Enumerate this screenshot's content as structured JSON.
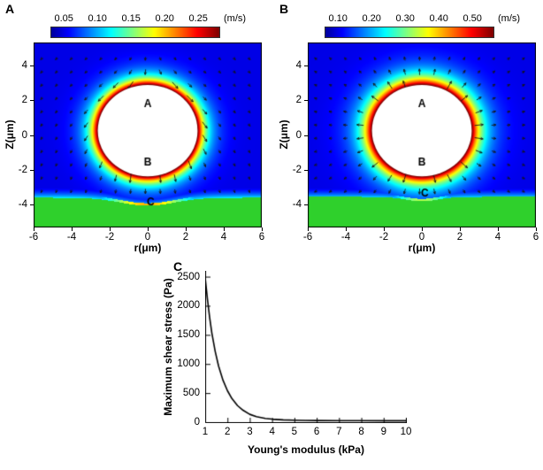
{
  "chart_data": [
    {
      "id": "A",
      "type": "heatmap",
      "panel_label": "A",
      "xlabel": "r(μm)",
      "ylabel": "Z(μm)",
      "x_range": [
        -6,
        6
      ],
      "y_range": [
        -5.3,
        5.3
      ],
      "x_ticks": [
        "-6",
        "-4",
        "-2",
        "0",
        "2",
        "4",
        "6"
      ],
      "x_tick_values": [
        -6,
        -4,
        -2,
        0,
        2,
        4,
        6
      ],
      "y_ticks": [
        "4",
        "2",
        "0",
        "-2",
        "-4"
      ],
      "y_tick_values": [
        4,
        2,
        0,
        -2,
        -4
      ],
      "colorbar": {
        "ticks": [
          "0.05",
          "0.10",
          "0.15",
          "0.20",
          "0.25"
        ],
        "tick_values": [
          0.05,
          0.1,
          0.15,
          0.2,
          0.25
        ],
        "unit": "(m/s)",
        "vmin": 0.03,
        "vmax": 0.28,
        "colormap": "jet"
      },
      "bubble": {
        "center": [
          0,
          0.25
        ],
        "radius": 2.65,
        "color": "#ffffff"
      },
      "substrate": {
        "level": -3.6,
        "dip_depth": 0.45,
        "dip_width": 2.0,
        "color": "#2fd02c"
      },
      "field": {
        "decay": 0.5,
        "baseline": 0.1,
        "glow": 0.36,
        "line": 0.7,
        "line_width": 7,
        "arrow_style": "downwash"
      },
      "annotations": [
        {
          "text": "A",
          "x": 0,
          "y": 1.8
        },
        {
          "text": "B",
          "x": 0,
          "y": -1.55
        },
        {
          "text": "C",
          "x": 0.15,
          "y": -3.82
        }
      ]
    },
    {
      "id": "B",
      "type": "heatmap",
      "panel_label": "B",
      "xlabel": "r(μm)",
      "ylabel": "Z(μm)",
      "x_range": [
        -6,
        6
      ],
      "y_range": [
        -5.3,
        5.3
      ],
      "x_ticks": [
        "-6",
        "-4",
        "-2",
        "0",
        "2",
        "4",
        "6"
      ],
      "x_tick_values": [
        -6,
        -4,
        -2,
        0,
        2,
        4,
        6
      ],
      "y_ticks": [
        "4",
        "2",
        "0",
        "-2",
        "-4"
      ],
      "y_tick_values": [
        4,
        2,
        0,
        -2,
        -4
      ],
      "colorbar": {
        "ticks": [
          "0.10",
          "0.20",
          "0.30",
          "0.40",
          "0.50"
        ],
        "tick_values": [
          0.1,
          0.2,
          0.3,
          0.4,
          0.5
        ],
        "unit": "(m/s)",
        "vmin": 0.06,
        "vmax": 0.56,
        "colormap": "jet"
      },
      "bubble": {
        "center": [
          0,
          0.25
        ],
        "radius": 2.65,
        "color": "#ffffff"
      },
      "substrate": {
        "level": -3.55,
        "dip_depth": 0.25,
        "dip_width": 1.2,
        "color": "#2fd02c"
      },
      "field": {
        "decay": 0.62,
        "baseline": 0.1,
        "glow": 0.32,
        "line": 0.55,
        "line_width": 3,
        "arrow_style": "radial"
      },
      "annotations": [
        {
          "text": "A",
          "x": 0,
          "y": 1.8
        },
        {
          "text": "B",
          "x": 0,
          "y": -1.55
        },
        {
          "text": "C",
          "x": 0.15,
          "y": -3.3
        }
      ]
    },
    {
      "id": "C",
      "type": "line",
      "panel_label": "C",
      "xlabel": "Young's modulus (kPa)",
      "ylabel": "Maximum shear stress (Pa)",
      "x_range": [
        1,
        10
      ],
      "y_range": [
        0,
        2600
      ],
      "x_ticks": [
        "1",
        "2",
        "3",
        "4",
        "5",
        "6",
        "7",
        "8",
        "9",
        "10"
      ],
      "x_tick_values": [
        1,
        2,
        3,
        4,
        5,
        6,
        7,
        8,
        9,
        10
      ],
      "y_ticks": [
        "0",
        "500",
        "1000",
        "1500",
        "2000",
        "2500"
      ],
      "y_tick_values": [
        0,
        500,
        1000,
        1500,
        2000,
        2500
      ],
      "line_color": "#000000",
      "series": [
        {
          "name": "maximum-shear-stress",
          "x": [
            1,
            1.1,
            1.2,
            1.3,
            1.45,
            1.6,
            1.8,
            2.0,
            2.2,
            2.45,
            2.7,
            3.0,
            3.3,
            3.7,
            4.0,
            4.5,
            5.0,
            5.5,
            6.0,
            7.0,
            8.0,
            9.0,
            10.0
          ],
          "y": [
            2480,
            2120,
            1800,
            1530,
            1215,
            965,
            720,
            540,
            405,
            285,
            205,
            135,
            95,
            65,
            52,
            40,
            34,
            31,
            29,
            27,
            26,
            25,
            24
          ]
        }
      ]
    }
  ]
}
